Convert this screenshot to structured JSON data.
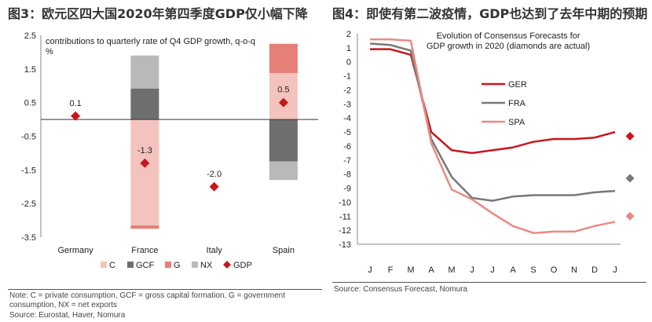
{
  "left": {
    "figure_title": "图3：欧元区四大国2020年第四季度GDP仅小幅下降",
    "note": "Note: C = private consumption, GCF = gross capital formation, G = government consumption, NX = net exports",
    "source": "Source: Eurostat, Haver, Nomura"
  },
  "right": {
    "figure_title": "图4：即使有第二波疫情，GDP也达到了去年中期的预期",
    "source": "Source: Consensus Forecast, Nomura"
  },
  "colors": {
    "C": "#f4c3be",
    "GCF": "#6e6e6e",
    "G": "#e57f78",
    "NX": "#b9b9b9",
    "GDP": "#c8161d",
    "GER": "#c8161d",
    "FRA": "#787878",
    "SPA": "#e88a84"
  },
  "chart_data": [
    {
      "type": "bar",
      "stacked": true,
      "title": "contributions to quarterly rate of Q4 GDP growth, q-o-q %",
      "categories": [
        "Germany",
        "France",
        "Italy",
        "Spain"
      ],
      "ylim": [
        -3.5,
        2.5
      ],
      "yticks": [
        "2.5",
        "1.5",
        "0.5",
        "-0.5",
        "-1.5",
        "-2.5",
        "-3.5"
      ],
      "ytick_values": [
        2.5,
        1.5,
        0.5,
        -0.5,
        -1.5,
        -2.5,
        -3.5
      ],
      "legend_position": "bottom",
      "series": [
        {
          "name": "C",
          "values": [
            0,
            -3.15,
            0,
            1.38
          ]
        },
        {
          "name": "GCF",
          "values": [
            0,
            0.92,
            0,
            -1.25
          ]
        },
        {
          "name": "G",
          "values": [
            0,
            -0.1,
            0,
            0.87
          ]
        },
        {
          "name": "NX",
          "values": [
            0,
            0.98,
            0,
            -0.55
          ]
        }
      ],
      "gdp": {
        "name": "GDP",
        "values": [
          0.1,
          -1.3,
          -2.0,
          0.5
        ],
        "labels": [
          "0.1",
          "-1.3",
          "-2.0",
          "0.5"
        ]
      }
    },
    {
      "type": "line",
      "title": "Evolution of Consensus Forecasts for GDP growth in 2020 (diamonds are actual)",
      "x": [
        "J",
        "F",
        "M",
        "A",
        "M",
        "J",
        "J",
        "A",
        "S",
        "O",
        "N",
        "D",
        "J"
      ],
      "ylim": [
        -13,
        2
      ],
      "yticks": [
        "2",
        "1",
        "0",
        "-1",
        "-2",
        "-3",
        "-4",
        "-5",
        "-6",
        "-7",
        "-8",
        "-9",
        "-10",
        "-11",
        "-12",
        "-13"
      ],
      "ytick_values": [
        2,
        1,
        0,
        -1,
        -2,
        -3,
        -4,
        -5,
        -6,
        -7,
        -8,
        -9,
        -10,
        -11,
        -12,
        -13
      ],
      "legend_position": "center-left",
      "series": [
        {
          "name": "GER",
          "values": [
            0.9,
            0.9,
            0.5,
            -5.0,
            -6.3,
            -6.5,
            -6.3,
            -6.1,
            -5.7,
            -5.5,
            -5.5,
            -5.4,
            -5.0
          ],
          "actual": -5.3
        },
        {
          "name": "FRA",
          "values": [
            1.3,
            1.2,
            0.8,
            -5.5,
            -8.2,
            -9.7,
            -9.9,
            -9.6,
            -9.5,
            -9.5,
            -9.5,
            -9.3,
            -9.2
          ],
          "actual": -8.3
        },
        {
          "name": "SPA",
          "values": [
            1.6,
            1.6,
            1.5,
            -5.8,
            -9.1,
            -9.8,
            -10.8,
            -11.7,
            -12.2,
            -12.1,
            -12.1,
            -11.7,
            -11.4
          ],
          "actual": -11.0
        }
      ]
    }
  ]
}
